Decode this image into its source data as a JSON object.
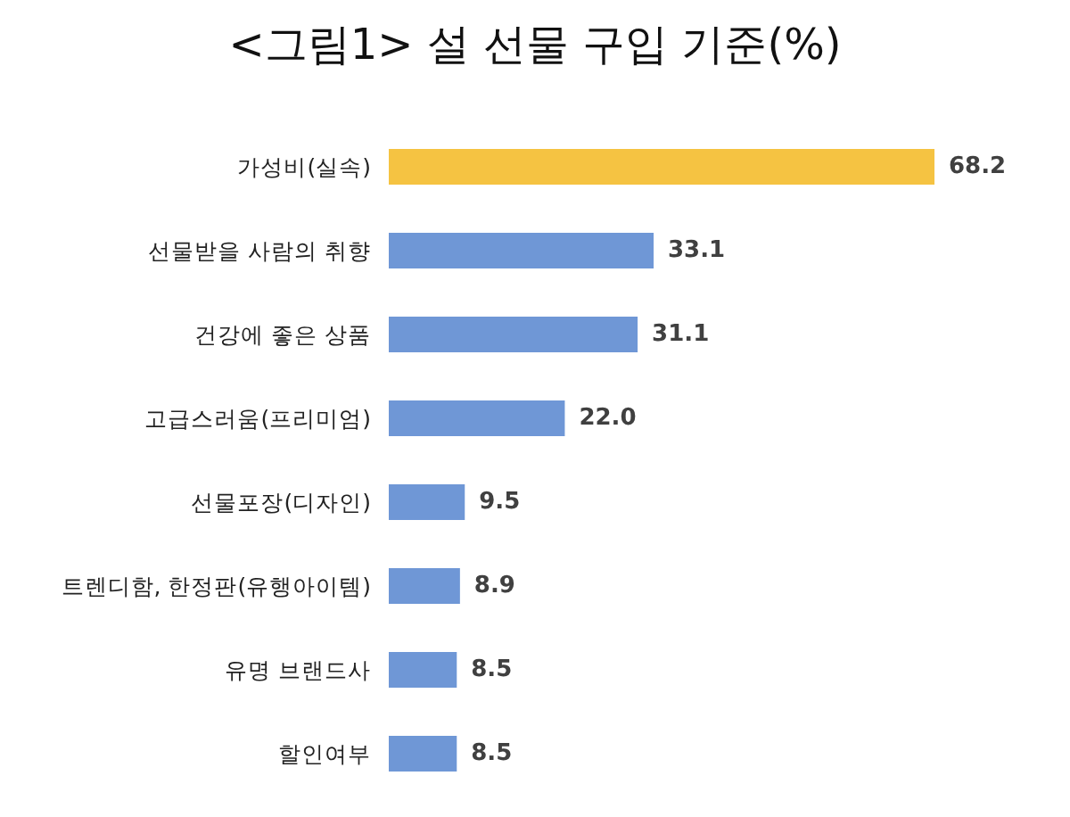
{
  "chart_data": {
    "type": "bar",
    "orientation": "horizontal",
    "title": "<그림1> 설 선물 구입 기준(%)",
    "categories": [
      "가성비(실속)",
      "선물받을 사람의 취향",
      "건강에 좋은 상품",
      "고급스러움(프리미엄)",
      "선물포장(디자인)",
      "트렌디함, 한정판(유행아이템)",
      "유명 브랜드사",
      "할인여부"
    ],
    "values": [
      68.2,
      33.1,
      31.1,
      22.0,
      9.5,
      8.9,
      8.5,
      8.5
    ],
    "colors": [
      "#f5c342",
      "#6f97d6",
      "#6f97d6",
      "#6f97d6",
      "#6f97d6",
      "#6f97d6",
      "#6f97d6",
      "#6f97d6"
    ],
    "value_labels": [
      "68.2",
      "33.1",
      "31.1",
      "22.0",
      "9.5",
      "8.9",
      "8.5",
      "8.5"
    ]
  }
}
